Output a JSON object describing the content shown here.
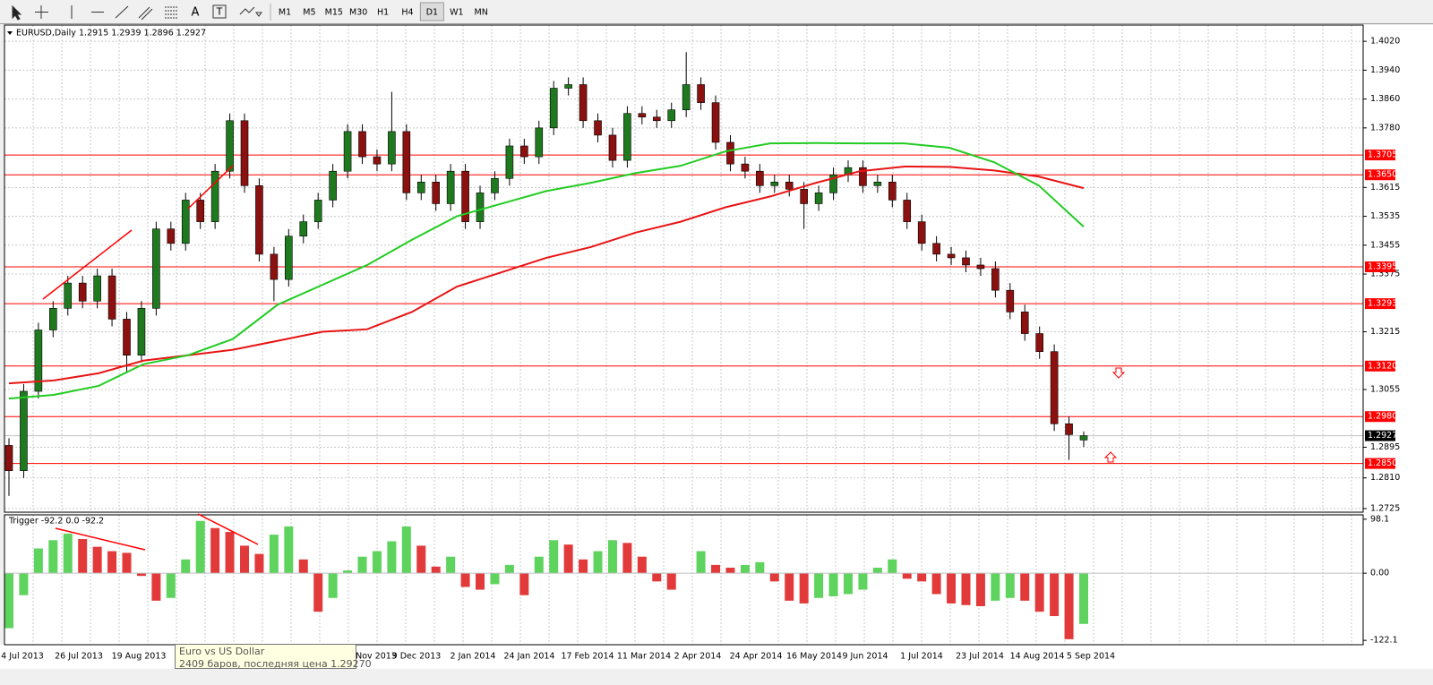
{
  "toolbar": {
    "tools": [
      "A",
      "T"
    ],
    "timeframes": [
      "M1",
      "M5",
      "M15",
      "M30",
      "H1",
      "H4",
      "D1",
      "W1",
      "MN"
    ]
  },
  "tooltip": {
    "title": "Euro vs US Dollar",
    "text": "2409 баров, последняя цена 1.29270"
  },
  "chart_data": [
    {
      "type": "candlestick",
      "title": "EURUSD,Daily",
      "subtitle": "1.2915 1.2939 1.2896 1.2927",
      "x_labels": [
        "4 Jul 2013",
        "26 Jul 2013",
        "19 Aug 2013",
        "Nov 2013",
        "9 Dec 2013",
        "2 Jan 2014",
        "24 Jan 2014",
        "17 Feb 2014",
        "11 Mar 2014",
        "2 Apr 2014",
        "24 Apr 2014",
        "16 May 2014",
        "9 Jun 2014",
        "1 Jul 2014",
        "23 Jul 2014",
        "14 Aug 2014",
        "5 Sep 2014"
      ],
      "open": [
        1.29,
        1.283,
        1.305,
        1.322,
        1.328,
        1.335,
        1.33,
        1.337,
        1.325,
        1.315,
        1.328,
        1.35,
        1.346,
        1.358,
        1.352,
        1.366,
        1.38,
        1.362,
        1.343,
        1.336,
        1.348,
        1.352,
        1.358,
        1.366,
        1.377,
        1.37,
        1.368,
        1.377,
        1.36,
        1.363,
        1.357,
        1.366,
        1.352,
        1.36,
        1.364,
        1.373,
        1.37,
        1.378,
        1.389,
        1.39,
        1.38,
        1.376,
        1.369,
        1.382,
        1.381,
        1.38,
        1.383,
        1.39,
        1.385,
        1.374,
        1.368,
        1.366,
        1.362,
        1.363,
        1.361,
        1.357,
        1.36,
        1.365,
        1.367,
        1.362,
        1.363,
        1.358,
        1.352,
        1.346,
        1.343,
        1.342,
        1.34,
        1.339,
        1.333,
        1.327,
        1.321,
        1.316,
        1.296,
        1.2915
      ],
      "high": [
        1.292,
        1.307,
        1.324,
        1.33,
        1.337,
        1.337,
        1.339,
        1.339,
        1.327,
        1.33,
        1.352,
        1.352,
        1.36,
        1.36,
        1.368,
        1.382,
        1.382,
        1.364,
        1.345,
        1.35,
        1.354,
        1.36,
        1.368,
        1.379,
        1.379,
        1.372,
        1.388,
        1.379,
        1.365,
        1.365,
        1.368,
        1.368,
        1.362,
        1.366,
        1.375,
        1.375,
        1.38,
        1.391,
        1.392,
        1.392,
        1.382,
        1.378,
        1.384,
        1.384,
        1.383,
        1.385,
        1.399,
        1.392,
        1.387,
        1.376,
        1.37,
        1.368,
        1.365,
        1.365,
        1.363,
        1.362,
        1.367,
        1.369,
        1.369,
        1.365,
        1.365,
        1.36,
        1.354,
        1.348,
        1.345,
        1.344,
        1.342,
        1.341,
        1.335,
        1.329,
        1.323,
        1.318,
        1.298,
        1.2939
      ],
      "low": [
        1.276,
        1.281,
        1.303,
        1.32,
        1.326,
        1.328,
        1.328,
        1.323,
        1.31,
        1.313,
        1.326,
        1.344,
        1.344,
        1.35,
        1.35,
        1.364,
        1.36,
        1.341,
        1.33,
        1.334,
        1.346,
        1.35,
        1.356,
        1.364,
        1.368,
        1.366,
        1.366,
        1.358,
        1.358,
        1.355,
        1.355,
        1.35,
        1.35,
        1.358,
        1.362,
        1.368,
        1.368,
        1.376,
        1.387,
        1.378,
        1.374,
        1.367,
        1.367,
        1.379,
        1.378,
        1.378,
        1.381,
        1.383,
        1.372,
        1.366,
        1.364,
        1.36,
        1.36,
        1.359,
        1.35,
        1.355,
        1.358,
        1.363,
        1.36,
        1.36,
        1.356,
        1.35,
        1.344,
        1.341,
        1.34,
        1.338,
        1.337,
        1.331,
        1.325,
        1.319,
        1.314,
        1.294,
        1.286,
        1.2896
      ],
      "close": [
        1.283,
        1.305,
        1.322,
        1.328,
        1.335,
        1.33,
        1.337,
        1.325,
        1.315,
        1.328,
        1.35,
        1.346,
        1.358,
        1.352,
        1.366,
        1.38,
        1.362,
        1.343,
        1.336,
        1.348,
        1.352,
        1.358,
        1.366,
        1.377,
        1.37,
        1.368,
        1.377,
        1.36,
        1.363,
        1.357,
        1.366,
        1.352,
        1.36,
        1.364,
        1.373,
        1.37,
        1.378,
        1.389,
        1.39,
        1.38,
        1.376,
        1.369,
        1.382,
        1.381,
        1.38,
        1.383,
        1.39,
        1.385,
        1.374,
        1.368,
        1.366,
        1.362,
        1.363,
        1.361,
        1.357,
        1.36,
        1.365,
        1.367,
        1.362,
        1.363,
        1.358,
        1.352,
        1.346,
        1.343,
        1.342,
        1.34,
        1.339,
        1.333,
        1.327,
        1.321,
        1.316,
        1.296,
        1.293,
        1.2927
      ],
      "up_color": "#1f7a1f",
      "down_color": "#8b1010",
      "wick_color": "#000000",
      "moving_averages": [
        {
          "color": "#e81414",
          "values": [
            1.3072,
            1.308,
            1.31,
            1.3135,
            1.315,
            1.3165,
            1.319,
            1.3215,
            1.3222,
            1.327,
            1.334,
            1.338,
            1.342,
            1.345,
            1.349,
            1.352,
            1.356,
            1.359,
            1.3627,
            1.366,
            1.3673,
            1.3672,
            1.3662,
            1.3645,
            1.3613
          ]
        },
        {
          "color": "#22cc22",
          "values": [
            1.303,
            1.304,
            1.3065,
            1.3125,
            1.315,
            1.3195,
            1.329,
            1.3345,
            1.34,
            1.347,
            1.3535,
            1.357,
            1.3605,
            1.3628,
            1.3655,
            1.3675,
            1.3715,
            1.3737,
            1.3738,
            1.3737,
            1.3737,
            1.3725,
            1.3685,
            1.362,
            1.3506
          ]
        }
      ],
      "levels": [
        1.3705,
        {
          "value": 1.365,
          "label": "1.3650"
        },
        1.3395,
        1.3293,
        {
          "value": 1.312,
          "label": "1.3120"
        },
        {
          "value": 1.298,
          "label": "1.2980"
        },
        {
          "value": 1.285,
          "label": "1.2850"
        }
      ],
      "level_color": "#ff0000",
      "last_price": 1.2927,
      "ylim": [
        1.2715,
        1.4065
      ],
      "yticks": [
        {
          "value": 1.402,
          "label": "1.4020"
        },
        {
          "value": 1.394,
          "label": "1.3940"
        },
        {
          "value": 1.386,
          "label": "1.3860"
        },
        {
          "value": 1.378,
          "label": "1.3780"
        },
        1.3615,
        1.3535,
        1.3455,
        1.3375,
        1.3215,
        1.3055,
        1.2895,
        {
          "value": 1.281,
          "label": "1.2810"
        },
        1.2725
      ],
      "grid": true
    },
    {
      "type": "histogram",
      "title": "Trigger -92.2 0.0 -92.2",
      "values": [
        -100,
        -40,
        45,
        60,
        72,
        62,
        48,
        40,
        37,
        -5,
        -50,
        -45,
        25,
        95,
        82,
        75,
        50,
        35,
        70,
        85,
        25,
        -70,
        -45,
        5,
        30,
        40,
        58,
        85,
        50,
        12,
        30,
        -25,
        -30,
        -20,
        15,
        -40,
        30,
        60,
        52,
        25,
        40,
        60,
        55,
        30,
        -15,
        -30,
        0,
        40,
        15,
        10,
        15,
        20,
        -15,
        -50,
        -55,
        -45,
        -42,
        -38,
        -30,
        10,
        25,
        -10,
        -15,
        -38,
        -55,
        -58,
        -60,
        -50,
        -45,
        -50,
        -70,
        -78,
        -120,
        -92.2
      ],
      "up_color": "#5ed35e",
      "down_color": "#e23a3a",
      "ylim": [
        -130,
        106
      ],
      "yticks": [
        98.1,
        {
          "value": 0,
          "label": "0.00"
        },
        -122.1
      ]
    }
  ]
}
